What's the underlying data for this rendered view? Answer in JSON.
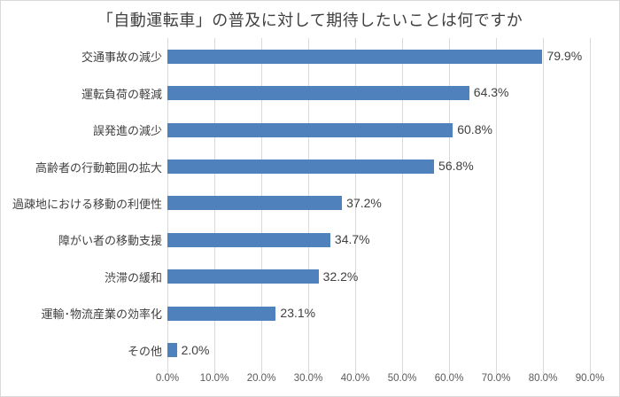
{
  "chart_data": {
    "type": "bar",
    "orientation": "horizontal",
    "title": "「自動運転車」の普及に対して期待したいことは何ですか",
    "categories": [
      "交通事故の減少",
      "運転負荷の軽減",
      "誤発進の減少",
      "高齢者の行動範囲の拡大",
      "過疎地における移動の利便性",
      "障がい者の移動支援",
      "渋滞の緩和",
      "運輸･物流産業の効率化",
      "その他"
    ],
    "values": [
      79.9,
      64.3,
      60.8,
      56.8,
      37.2,
      34.7,
      32.2,
      23.1,
      2.0
    ],
    "value_labels": [
      "79.9%",
      "64.3%",
      "60.8%",
      "56.8%",
      "37.2%",
      "34.7%",
      "32.2%",
      "23.1%",
      "2.0%"
    ],
    "xlabel": "",
    "ylabel": "",
    "xlim": [
      0,
      90
    ],
    "x_tick_labels": [
      "0.0%",
      "10.0%",
      "20.0%",
      "30.0%",
      "40.0%",
      "50.0%",
      "60.0%",
      "70.0%",
      "80.0%",
      "90.0%"
    ],
    "grid": "vertical-only",
    "legend_position": "none",
    "colors": {
      "bar": "#4f81bd",
      "gridline": "#d9d9d9",
      "title_text": "#404040",
      "label_text": "#404040",
      "axis_text": "#595959",
      "background": "#ffffff"
    }
  }
}
